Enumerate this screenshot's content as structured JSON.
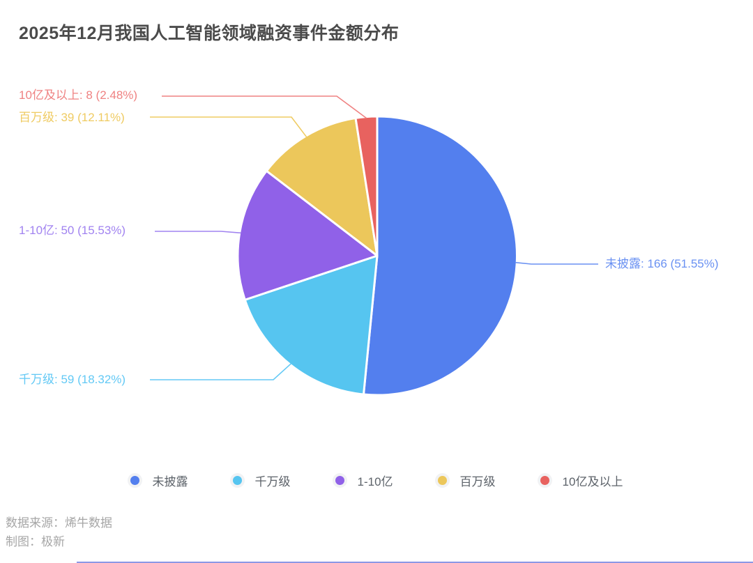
{
  "title": "2025年12月我国人工智能领域融资事件金额分布",
  "source": {
    "line1": "数据来源：烯牛数据",
    "line2": "制图：极新"
  },
  "chart_data": {
    "type": "pie",
    "title": "2025年12月我国人工智能领域融资事件金额分布",
    "legend_position": "bottom",
    "label_format": "{name}: {value} ({percent}%)",
    "slices": [
      {
        "name": "未披露",
        "value": 166,
        "percent": 51.55,
        "color": "#537fee",
        "label_color": "#6a91f2"
      },
      {
        "name": "千万级",
        "value": 59,
        "percent": 18.32,
        "color": "#56c5f0",
        "label_color": "#63c9f5"
      },
      {
        "name": "1-10亿",
        "value": 50,
        "percent": 15.53,
        "color": "#9061e8",
        "label_color": "#a183f0"
      },
      {
        "name": "百万级",
        "value": 39,
        "percent": 12.11,
        "color": "#ecc75b",
        "label_color": "#efcb62"
      },
      {
        "name": "10亿及以上",
        "value": 8,
        "percent": 2.48,
        "color": "#e8625f",
        "label_color": "#ef8282"
      }
    ],
    "legend": [
      "未披露",
      "千万级",
      "1-10亿",
      "百万级",
      "10亿及以上"
    ]
  }
}
